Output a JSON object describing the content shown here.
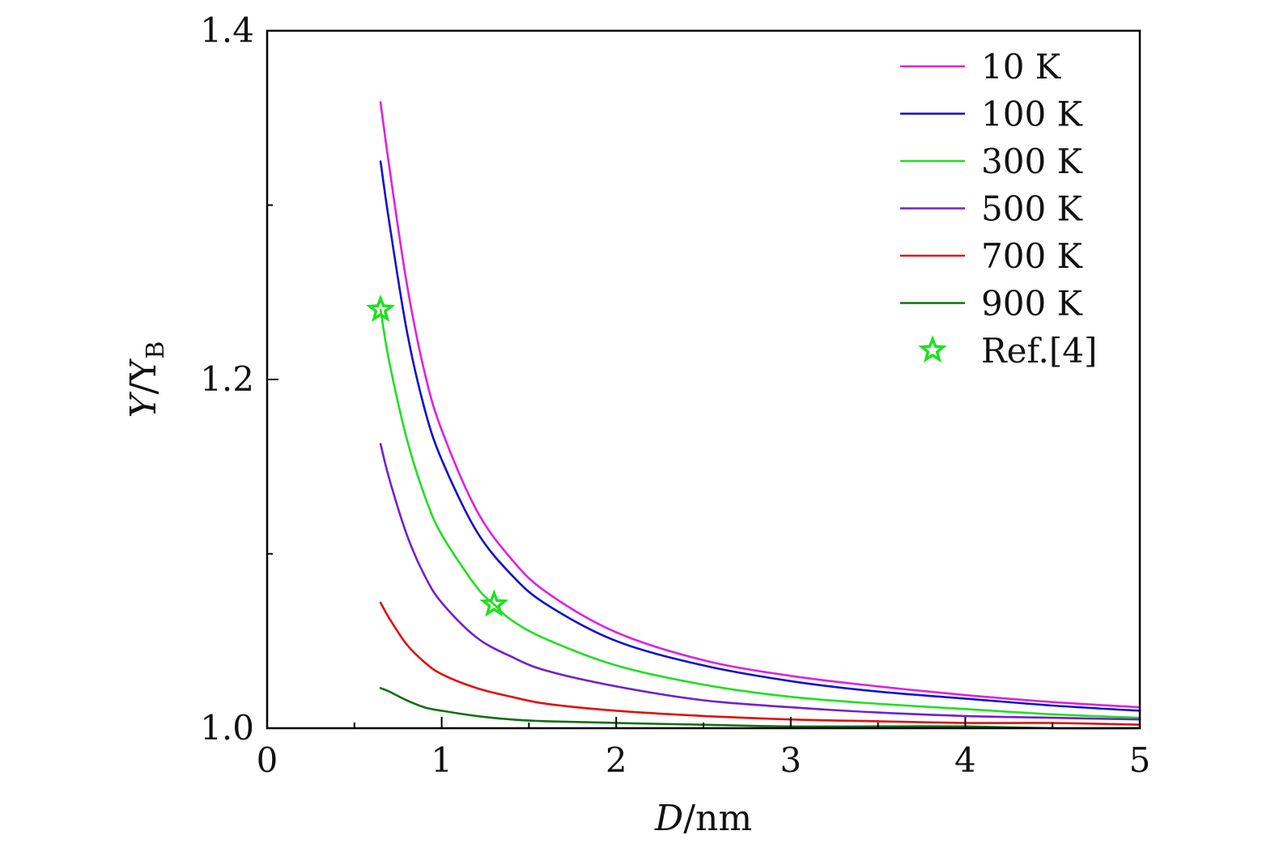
{
  "chart_data": {
    "type": "line",
    "xlabel_var": "D",
    "xlabel_unit": "/nm",
    "ylabel_var": "Y",
    "ylabel_mid": "/Y",
    "ylabel_sub": "B",
    "xlim": [
      0,
      5
    ],
    "ylim": [
      1.0,
      1.4
    ],
    "x_ticks": [
      0,
      1,
      2,
      3,
      4,
      5
    ],
    "x_tick_labels": [
      "0",
      "1",
      "2",
      "3",
      "4",
      "5"
    ],
    "y_ticks": [
      1.0,
      1.2,
      1.4
    ],
    "y_tick_labels": [
      "1.0",
      "1.2",
      "1.4"
    ],
    "legend_position": "top-right",
    "series": [
      {
        "name": "10 K",
        "color": "#e020e0",
        "x": [
          0.65,
          0.7,
          0.8,
          0.9,
          1.0,
          1.2,
          1.4,
          1.6,
          2.0,
          2.5,
          3.0,
          3.5,
          4.0,
          4.5,
          5.0
        ],
        "y": [
          1.359,
          1.322,
          1.255,
          1.205,
          1.171,
          1.125,
          1.097,
          1.078,
          1.055,
          1.039,
          1.03,
          1.024,
          1.019,
          1.015,
          1.012
        ]
      },
      {
        "name": "100 K",
        "color": "#1010d0",
        "x": [
          0.65,
          0.7,
          0.8,
          0.9,
          1.0,
          1.2,
          1.4,
          1.6,
          2.0,
          2.5,
          3.0,
          3.5,
          4.0,
          4.5,
          5.0
        ],
        "y": [
          1.325,
          1.29,
          1.228,
          1.184,
          1.154,
          1.113,
          1.088,
          1.071,
          1.05,
          1.036,
          1.027,
          1.021,
          1.017,
          1.013,
          1.01
        ]
      },
      {
        "name": "300 K",
        "color": "#20e020",
        "x": [
          0.65,
          0.7,
          0.8,
          0.9,
          1.0,
          1.2,
          1.3,
          1.4,
          1.6,
          2.0,
          2.5,
          3.0,
          3.5,
          4.0,
          4.5,
          5.0
        ],
        "y": [
          1.24,
          1.21,
          1.166,
          1.134,
          1.111,
          1.081,
          1.071,
          1.062,
          1.051,
          1.036,
          1.025,
          1.018,
          1.014,
          1.011,
          1.008,
          1.006
        ]
      },
      {
        "name": "500 K",
        "color": "#7020d0",
        "x": [
          0.65,
          0.7,
          0.8,
          0.9,
          1.0,
          1.2,
          1.4,
          1.6,
          2.0,
          2.5,
          3.0,
          3.5,
          4.0,
          4.5,
          5.0
        ],
        "y": [
          1.163,
          1.143,
          1.111,
          1.088,
          1.072,
          1.052,
          1.041,
          1.033,
          1.024,
          1.016,
          1.012,
          1.009,
          1.007,
          1.006,
          1.005
        ]
      },
      {
        "name": "700 K",
        "color": "#e01010",
        "x": [
          0.65,
          0.7,
          0.8,
          0.9,
          1.0,
          1.2,
          1.4,
          1.6,
          2.0,
          2.5,
          3.0,
          3.5,
          4.0,
          4.5,
          5.0
        ],
        "y": [
          1.072,
          1.063,
          1.048,
          1.038,
          1.031,
          1.023,
          1.018,
          1.014,
          1.01,
          1.007,
          1.005,
          1.004,
          1.003,
          1.003,
          1.002
        ]
      },
      {
        "name": "900 K",
        "color": "#107010",
        "x": [
          0.65,
          0.7,
          0.8,
          0.9,
          1.0,
          1.2,
          1.4,
          1.6,
          2.0,
          2.5,
          3.0,
          3.5,
          4.0,
          4.5,
          5.0
        ],
        "y": [
          1.023,
          1.021,
          1.016,
          1.012,
          1.01,
          1.007,
          1.005,
          1.004,
          1.003,
          1.002,
          1.001,
          1.001,
          1.001,
          1.0,
          1.0
        ]
      }
    ],
    "markers": {
      "name": "Ref.[4]",
      "color": "#20e020",
      "symbol": "star",
      "points": [
        {
          "x": 0.65,
          "y": 1.24
        },
        {
          "x": 1.3,
          "y": 1.071
        }
      ]
    }
  }
}
